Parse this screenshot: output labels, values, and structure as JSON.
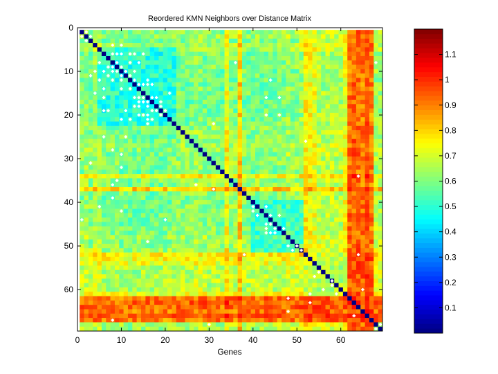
{
  "chart_data": {
    "type": "heatmap",
    "title": "Reordered KMN Neighbors over Distance Matrix",
    "xlabel": "Genes",
    "ylabel": "",
    "n_genes": 69,
    "xlim": [
      0,
      69.5
    ],
    "ylim": [
      0,
      69.5
    ],
    "y_reversed": true,
    "x_ticks": [
      0,
      10,
      20,
      30,
      40,
      50,
      60
    ],
    "x_tick_labels": [
      "0",
      "10",
      "20",
      "30",
      "40",
      "50",
      "60"
    ],
    "y_ticks": [
      0,
      10,
      20,
      30,
      40,
      50,
      60
    ],
    "y_tick_labels": [
      "0",
      "10",
      "20",
      "30",
      "40",
      "50",
      "60"
    ],
    "colormap": "jet",
    "color_range": [
      0,
      1.2
    ],
    "colorbar_ticks": [
      0.1,
      0.2,
      0.3,
      0.4,
      0.5,
      0.6,
      0.7,
      0.8,
      0.9,
      1,
      1.1
    ],
    "colorbar_tick_labels": [
      "0.1",
      "0.2",
      "0.3",
      "0.4",
      "0.5",
      "0.6",
      "0.7",
      "0.8",
      "0.9",
      "1",
      "1.1"
    ],
    "diagonal_value": 0.0,
    "gene_profile": [
      0.62,
      0.66,
      0.6,
      0.68,
      0.66,
      0.56,
      0.56,
      0.58,
      0.58,
      0.56,
      0.57,
      0.56,
      0.55,
      0.56,
      0.58,
      0.57,
      0.55,
      0.56,
      0.56,
      0.57,
      0.58,
      0.6,
      0.62,
      0.62,
      0.6,
      0.6,
      0.66,
      0.66,
      0.62,
      0.6,
      0.64,
      0.6,
      0.58,
      0.78,
      0.64,
      0.62,
      0.86,
      0.62,
      0.6,
      0.6,
      0.62,
      0.6,
      0.62,
      0.6,
      0.6,
      0.62,
      0.62,
      0.7,
      0.64,
      0.66,
      0.7,
      0.8,
      0.78,
      0.76,
      0.74,
      0.72,
      0.74,
      0.74,
      0.72,
      0.72,
      0.76,
      1.0,
      1.02,
      1.0,
      0.98,
      1.02,
      0.98,
      0.7,
      0.7
    ],
    "clusters": [
      {
        "start": 5,
        "end": 22,
        "value": 0.44
      },
      {
        "start": 40,
        "end": 51,
        "value": 0.46
      },
      {
        "start": 52,
        "end": 61,
        "value": 0.62
      },
      {
        "start": 62,
        "end": 67,
        "value": 0.95
      }
    ],
    "neighbor_markers": [
      [
        1,
        2
      ],
      [
        2,
        1
      ],
      [
        2,
        3
      ],
      [
        3,
        2
      ],
      [
        4,
        8
      ],
      [
        4,
        10
      ],
      [
        6,
        8
      ],
      [
        6,
        9
      ],
      [
        6,
        10
      ],
      [
        6,
        12
      ],
      [
        6,
        13
      ],
      [
        6,
        15
      ],
      [
        8,
        5
      ],
      [
        8,
        9
      ],
      [
        8,
        12
      ],
      [
        8,
        14
      ],
      [
        9,
        7
      ],
      [
        9,
        8
      ],
      [
        9,
        10
      ],
      [
        10,
        4
      ],
      [
        10,
        6
      ],
      [
        10,
        8
      ],
      [
        10,
        9
      ],
      [
        10,
        11
      ],
      [
        10,
        13
      ],
      [
        11,
        3
      ],
      [
        11,
        7
      ],
      [
        11,
        10
      ],
      [
        11,
        12
      ],
      [
        12,
        5
      ],
      [
        12,
        8
      ],
      [
        12,
        10
      ],
      [
        12,
        13
      ],
      [
        12,
        16
      ],
      [
        13,
        14
      ],
      [
        13,
        15
      ],
      [
        13,
        16
      ],
      [
        13,
        17
      ],
      [
        14,
        6
      ],
      [
        14,
        10
      ],
      [
        14,
        12
      ],
      [
        16,
        6
      ],
      [
        16,
        13
      ],
      [
        16,
        14
      ],
      [
        16,
        15
      ],
      [
        16,
        17
      ],
      [
        16,
        18
      ],
      [
        17,
        14
      ],
      [
        17,
        15
      ],
      [
        17,
        16
      ],
      [
        17,
        19
      ],
      [
        18,
        13
      ],
      [
        18,
        14
      ],
      [
        18,
        16
      ],
      [
        18,
        19
      ],
      [
        19,
        6
      ],
      [
        19,
        7
      ],
      [
        19,
        11
      ],
      [
        19,
        17
      ],
      [
        19,
        18
      ],
      [
        19,
        20
      ],
      [
        20,
        14
      ],
      [
        20,
        15
      ],
      [
        20,
        16
      ],
      [
        20,
        19
      ],
      [
        21,
        10
      ],
      [
        21,
        12
      ],
      [
        21,
        16
      ],
      [
        21,
        17
      ],
      [
        15,
        4
      ],
      [
        15,
        21
      ],
      [
        22,
        16
      ],
      [
        22,
        31
      ],
      [
        25,
        6
      ],
      [
        25,
        11
      ],
      [
        28,
        8
      ],
      [
        29,
        10
      ],
      [
        31,
        3
      ],
      [
        32,
        10
      ],
      [
        35,
        9
      ],
      [
        36,
        8
      ],
      [
        36,
        27
      ],
      [
        37,
        31
      ],
      [
        39,
        8
      ],
      [
        41,
        5
      ],
      [
        42,
        10
      ],
      [
        44,
        1
      ],
      [
        44,
        20
      ],
      [
        45,
        43
      ],
      [
        45,
        44
      ],
      [
        46,
        43
      ],
      [
        46,
        45
      ],
      [
        46,
        47
      ],
      [
        47,
        43
      ],
      [
        47,
        44
      ],
      [
        47,
        45
      ],
      [
        43,
        41
      ],
      [
        43,
        44
      ],
      [
        43,
        46
      ],
      [
        42,
        40
      ],
      [
        41,
        40
      ],
      [
        41,
        43
      ],
      [
        49,
        16
      ],
      [
        50,
        48
      ],
      [
        50,
        50
      ],
      [
        51,
        49
      ],
      [
        51,
        51
      ],
      [
        52,
        38
      ],
      [
        56,
        55
      ],
      [
        57,
        54
      ],
      [
        58,
        58
      ],
      [
        59,
        58
      ],
      [
        60,
        56
      ],
      [
        61,
        53
      ],
      [
        61,
        59
      ],
      [
        62,
        48
      ],
      [
        63,
        53
      ],
      [
        65,
        48
      ],
      [
        66,
        63
      ],
      [
        67,
        8
      ],
      [
        68,
        30
      ],
      [
        69,
        68
      ],
      [
        68,
        69
      ],
      [
        16,
        43
      ],
      [
        16,
        46
      ],
      [
        20,
        43
      ],
      [
        20,
        46
      ],
      [
        8,
        36
      ],
      [
        12,
        44
      ],
      [
        26,
        52
      ],
      [
        34,
        64
      ],
      [
        52,
        64
      ],
      [
        8,
        68
      ],
      [
        60,
        65
      ]
    ]
  }
}
